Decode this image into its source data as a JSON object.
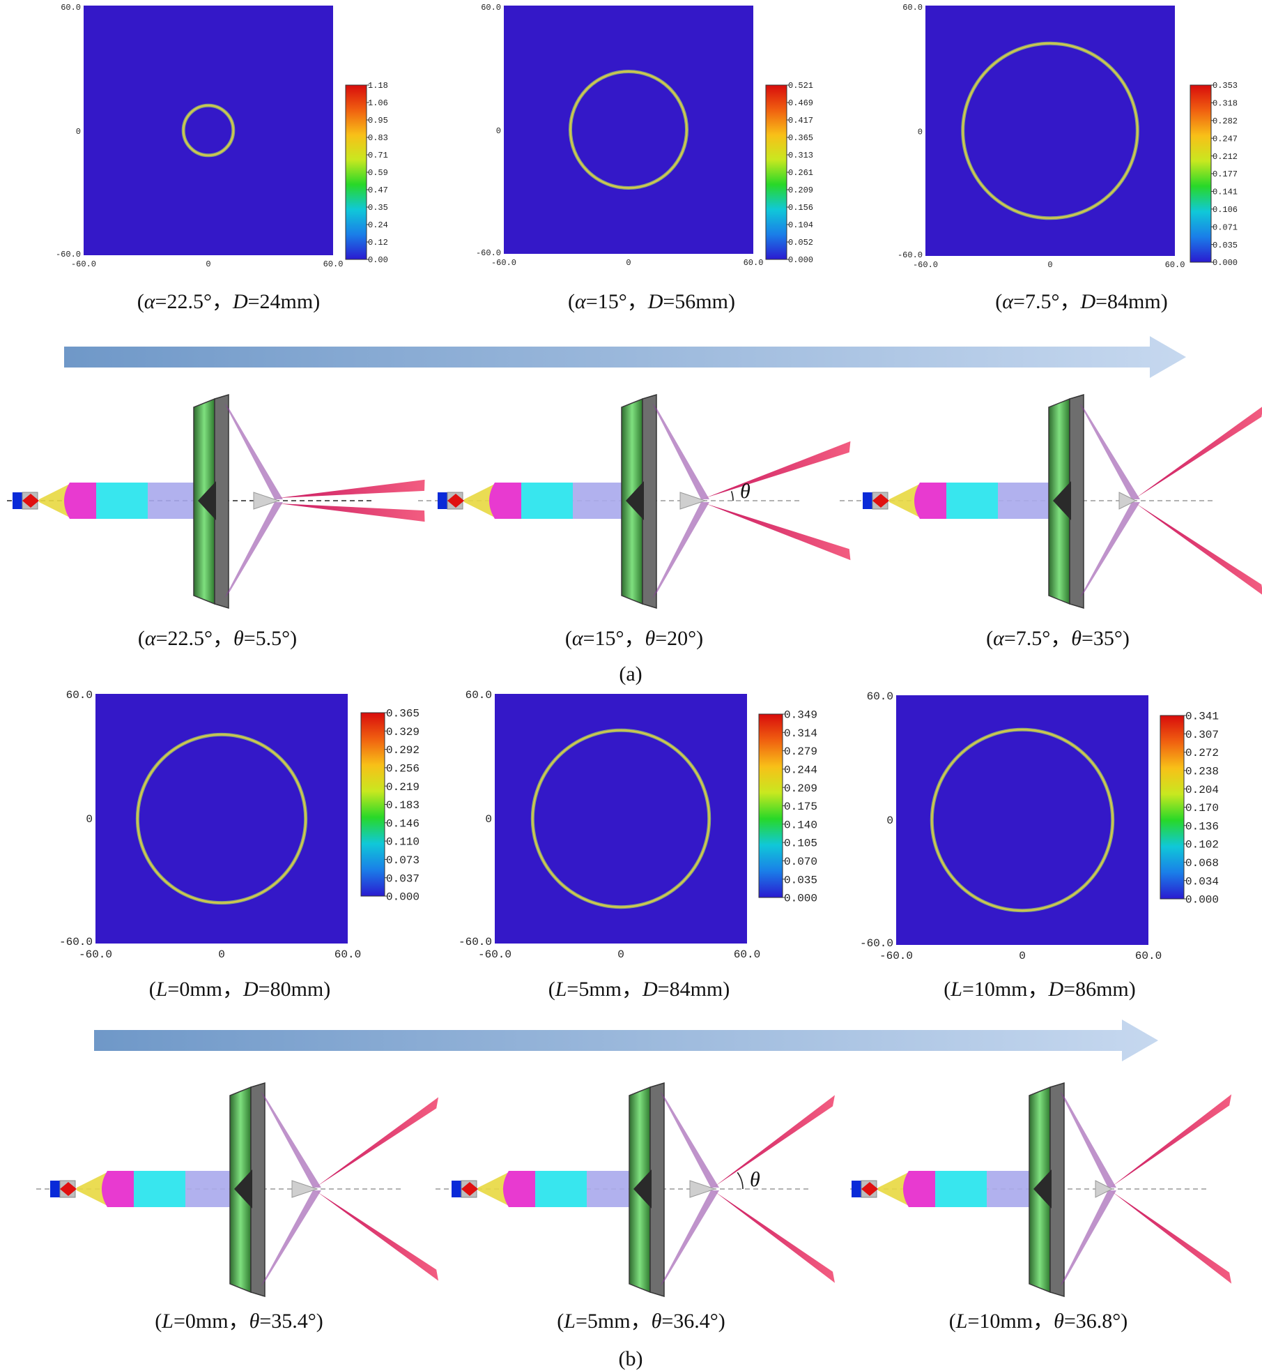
{
  "figure": {
    "panel_labels": [
      "(a)",
      "(b)"
    ],
    "axis_ticks": {
      "x": [
        "-60.0",
        "0",
        "60.0"
      ],
      "y": [
        "60.0",
        "0",
        "-60.0"
      ]
    },
    "arrow_colors": {
      "start": "#6f98c8",
      "end": "#c6d8ef"
    },
    "ring_colors": {
      "field": "#3418c8",
      "ring": "#d8c84a",
      "ring_edge": "#8aa878"
    },
    "colorbar_stops": [
      "#2a1ad0",
      "#1a7ee8",
      "#10c8d8",
      "#28d828",
      "#c8e820",
      "#f8c018",
      "#f06010",
      "#d80c0c"
    ],
    "angle_symbol": "θ"
  },
  "row1": [
    {
      "caption": {
        "prefix": "(",
        "v1": "α",
        "t1": "=22.5°，",
        "v2": "D",
        "t2": "=24mm)"
      },
      "ring_diameter_mm": 24,
      "colorbar": [
        "1.18",
        "1.06",
        "0.95",
        "0.83",
        "0.71",
        "0.59",
        "0.47",
        "0.35",
        "0.24",
        "0.12",
        "0.00"
      ]
    },
    {
      "caption": {
        "prefix": "(",
        "v1": "α",
        "t1": "=15°，",
        "v2": "D",
        "t2": "=56mm)"
      },
      "ring_diameter_mm": 56,
      "colorbar": [
        "0.521",
        "0.469",
        "0.417",
        "0.365",
        "0.313",
        "0.261",
        "0.209",
        "0.156",
        "0.104",
        "0.052",
        "0.000"
      ]
    },
    {
      "caption": {
        "prefix": "(",
        "v1": "α",
        "t1": "=7.5°，",
        "v2": "D",
        "t2": "=84mm)"
      },
      "ring_diameter_mm": 84,
      "colorbar": [
        "0.353",
        "0.318",
        "0.282",
        "0.247",
        "0.212",
        "0.177",
        "0.141",
        "0.106",
        "0.071",
        "0.035",
        "0.000"
      ]
    }
  ],
  "row2": [
    {
      "caption": {
        "prefix": "(",
        "v1": "α",
        "t1": "=22.5°，",
        "v2": "θ",
        "t2": "=5.5°)"
      },
      "theta_deg": 5.5
    },
    {
      "caption": {
        "prefix": "(",
        "v1": "α",
        "t1": "=15°，",
        "v2": "θ",
        "t2": "=20°)"
      },
      "theta_deg": 20
    },
    {
      "caption": {
        "prefix": "(",
        "v1": "α",
        "t1": "=7.5°，",
        "v2": "θ",
        "t2": "=35°)"
      },
      "theta_deg": 35
    }
  ],
  "row3": [
    {
      "caption": {
        "prefix": "(",
        "v1": "L",
        "t1": "=0mm，",
        "v2": "D",
        "t2": "=80mm)"
      },
      "ring_diameter_mm": 80,
      "colorbar": [
        "0.365",
        "0.329",
        "0.292",
        "0.256",
        "0.219",
        "0.183",
        "0.146",
        "0.110",
        "0.073",
        "0.037",
        "0.000"
      ]
    },
    {
      "caption": {
        "prefix": "(",
        "v1": "L",
        "t1": "=5mm，",
        "v2": "D",
        "t2": "=84mm)"
      },
      "ring_diameter_mm": 84,
      "colorbar": [
        "0.349",
        "0.314",
        "0.279",
        "0.244",
        "0.209",
        "0.175",
        "0.140",
        "0.105",
        "0.070",
        "0.035",
        "0.000"
      ]
    },
    {
      "caption": {
        "prefix": "(",
        "v1": "L",
        "t1": "=10mm，",
        "v2": "D",
        "t2": "=86mm)"
      },
      "ring_diameter_mm": 86,
      "colorbar": [
        "0.341",
        "0.307",
        "0.272",
        "0.238",
        "0.204",
        "0.170",
        "0.136",
        "0.102",
        "0.068",
        "0.034",
        "0.000"
      ]
    }
  ],
  "row4": [
    {
      "caption": {
        "prefix": "(",
        "v1": "L",
        "t1": "=0mm，",
        "v2": "θ",
        "t2": "=35.4°)"
      },
      "theta_deg": 35.4
    },
    {
      "caption": {
        "prefix": "(",
        "v1": "L",
        "t1": "=5mm，",
        "v2": "θ",
        "t2": "=36.4°)"
      },
      "theta_deg": 36.4
    },
    {
      "caption": {
        "prefix": "(",
        "v1": "L",
        "t1": "=10mm，",
        "v2": "θ",
        "t2": "=36.8°)"
      },
      "theta_deg": 36.8
    }
  ]
}
